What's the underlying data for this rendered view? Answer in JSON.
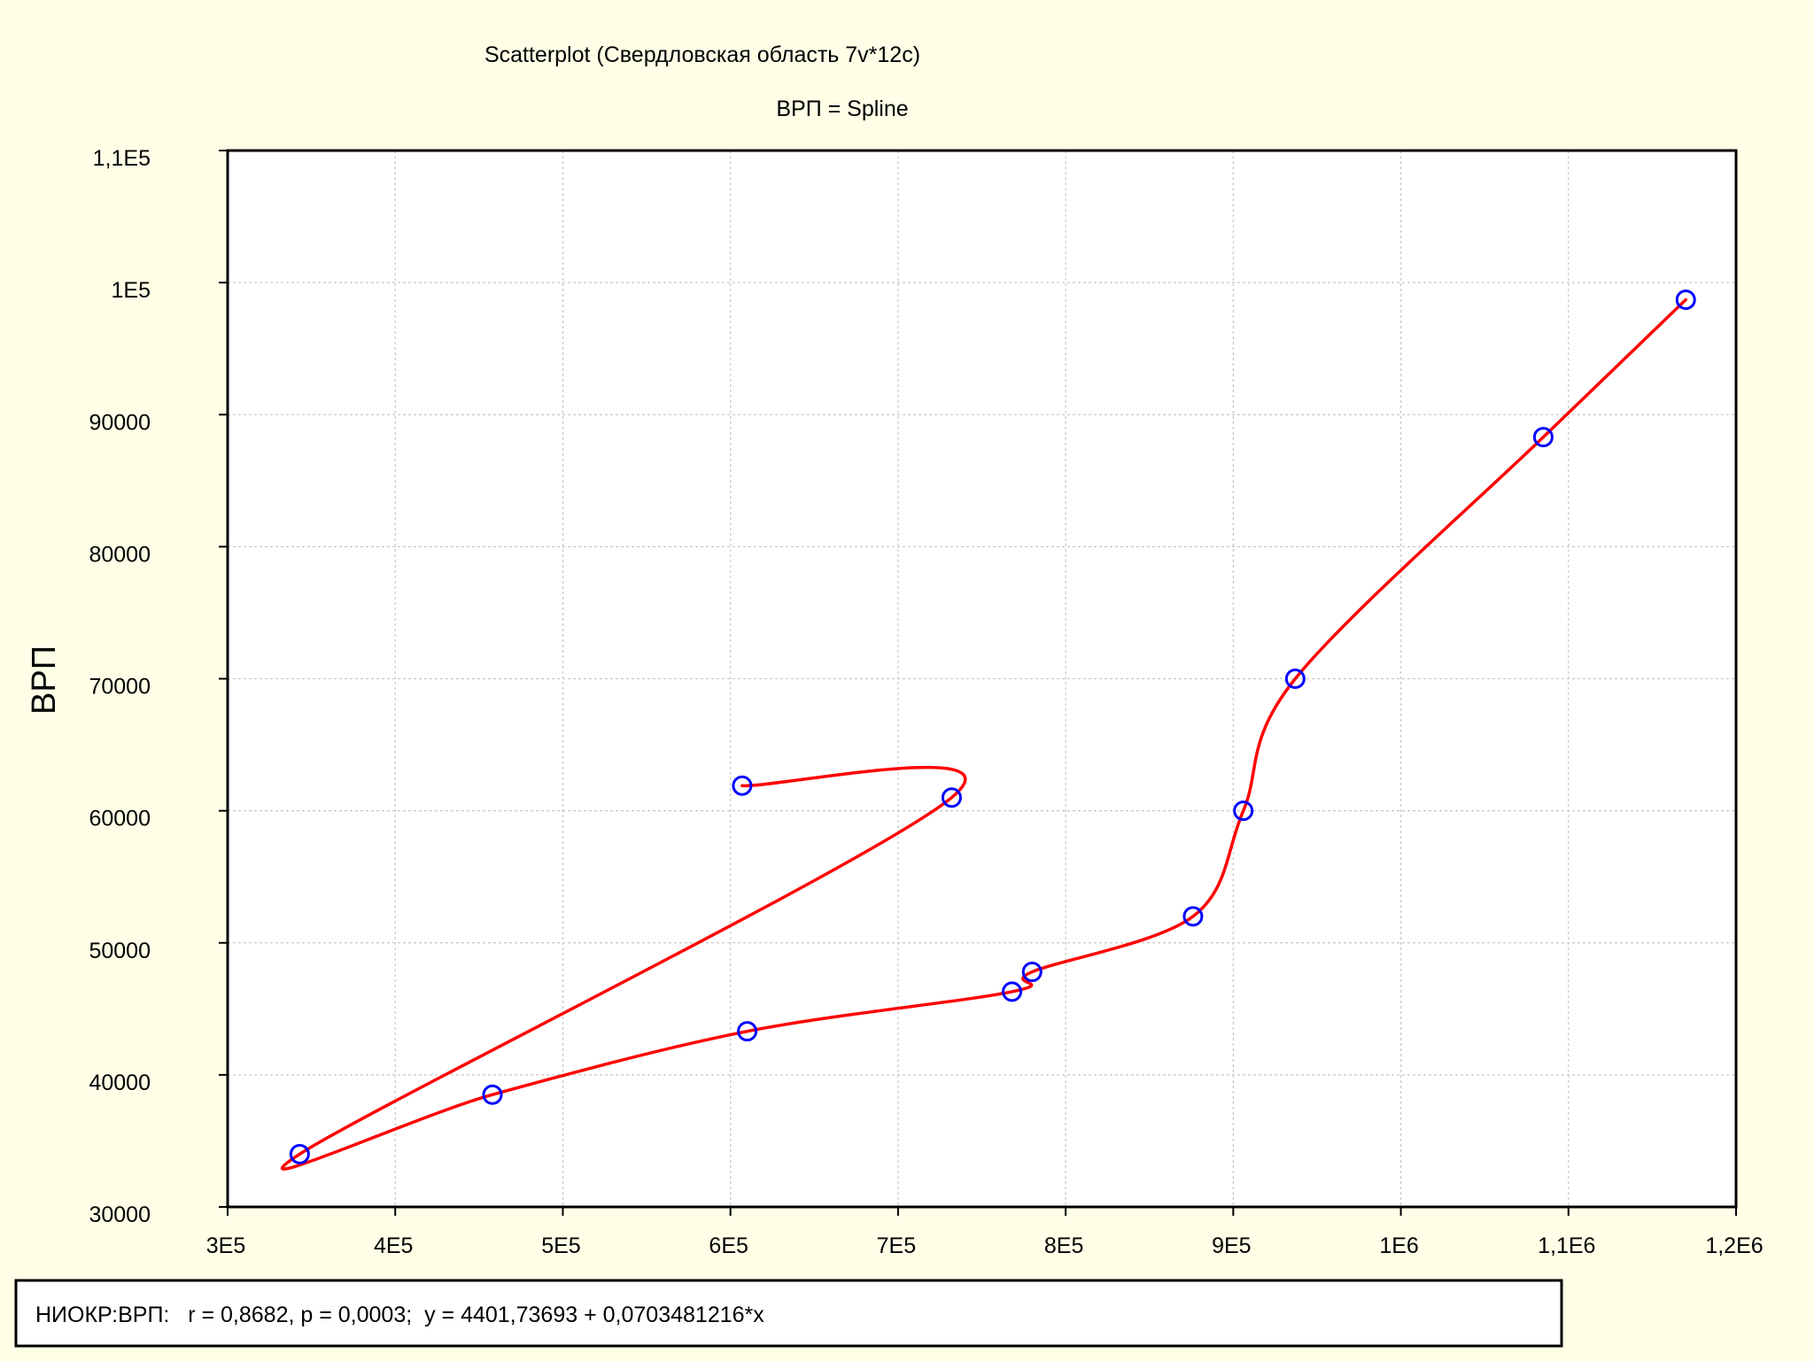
{
  "chart_data": {
    "type": "scatter",
    "title": "Scatterplot (Свердловская область 7v*12c)",
    "subtitle": "ВРП = Spline",
    "xlabel": "",
    "ylabel": "ВРП",
    "xlim": [
      300000,
      1200000
    ],
    "ylim": [
      30000,
      110000
    ],
    "x_ticks": [
      300000,
      400000,
      500000,
      600000,
      700000,
      800000,
      900000,
      1000000,
      1100000,
      1200000
    ],
    "x_tick_labels": [
      "3E5",
      "4E5",
      "5E5",
      "6E5",
      "7E5",
      "8E5",
      "9E5",
      "1E6",
      "1,1E6",
      "1,2E6"
    ],
    "y_ticks": [
      30000,
      40000,
      50000,
      60000,
      70000,
      80000,
      90000,
      100000,
      110000
    ],
    "y_tick_labels": [
      "30000",
      "40000",
      "50000",
      "60000",
      "70000",
      "80000",
      "90000",
      "1E5",
      "1,1E5"
    ],
    "grid": true,
    "series": [
      {
        "kind": "points",
        "color": "#0000FF",
        "points": [
          {
            "x": 343000,
            "y": 34000
          },
          {
            "x": 458000,
            "y": 38500
          },
          {
            "x": 607000,
            "y": 61900
          },
          {
            "x": 610000,
            "y": 43300
          },
          {
            "x": 732000,
            "y": 61000
          },
          {
            "x": 768000,
            "y": 46300
          },
          {
            "x": 780000,
            "y": 47800
          },
          {
            "x": 876000,
            "y": 52000
          },
          {
            "x": 906000,
            "y": 60000
          },
          {
            "x": 937000,
            "y": 70000
          },
          {
            "x": 1085000,
            "y": 88300
          },
          {
            "x": 1170000,
            "y": 98700
          }
        ]
      },
      {
        "kind": "spline",
        "color": "#FF0000",
        "points": [
          {
            "x": 607000,
            "y": 61900
          },
          {
            "x": 732000,
            "y": 61000
          },
          {
            "x": 343000,
            "y": 34000
          },
          {
            "x": 458000,
            "y": 38500
          },
          {
            "x": 610000,
            "y": 43300
          },
          {
            "x": 768000,
            "y": 46300
          },
          {
            "x": 780000,
            "y": 47800
          },
          {
            "x": 876000,
            "y": 52000
          },
          {
            "x": 906000,
            "y": 60000
          },
          {
            "x": 937000,
            "y": 70000
          },
          {
            "x": 1085000,
            "y": 88300
          },
          {
            "x": 1170000,
            "y": 98700
          }
        ]
      }
    ],
    "annotation": "НИОКР:ВРП:   r = 0,8682, p = 0,0003;  y = 4401,73693 + 0,0703481216*x"
  }
}
